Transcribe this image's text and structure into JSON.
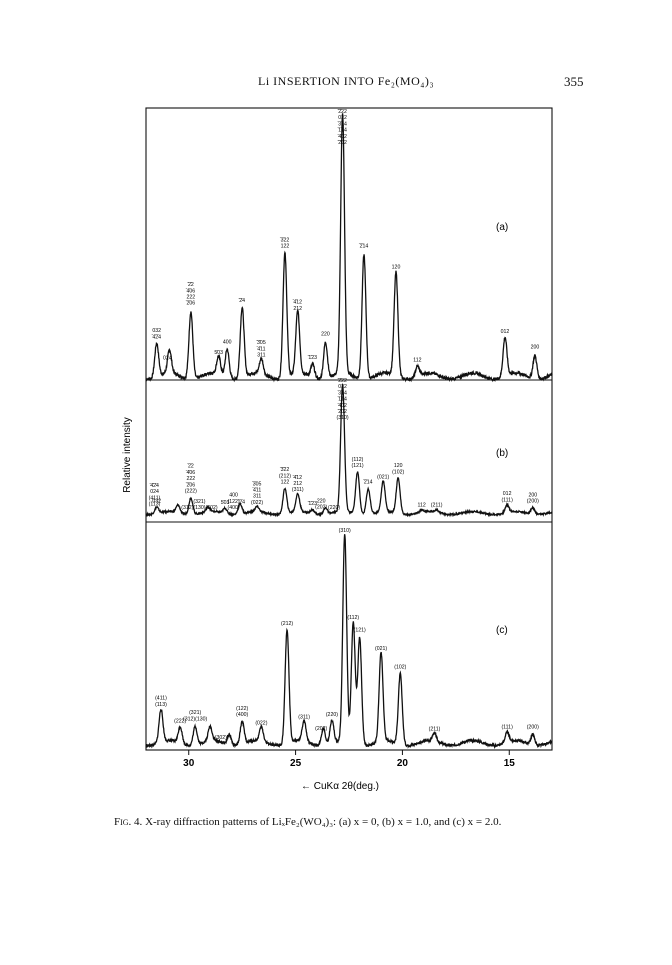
{
  "header": {
    "running_title": "Li INSERTION INTO Fe₂(MO₄)₃",
    "page_number": "355"
  },
  "figure": {
    "ylabel": "Relative intensity",
    "xlabel": "← CuKα 2θ(deg.)",
    "caption_label": "Fig. 4.",
    "caption_text": "X-ray diffraction patterns of LiₓFe₂(WO₄)₃: (a) x = 0, (b) x = 1.0, and (c) x = 2.0."
  },
  "chart_data": {
    "type": "line",
    "xlabel": "← CuKα 2θ(deg.)",
    "ylabel": "Relative intensity",
    "x_ticks": [
      30,
      25,
      20,
      15
    ],
    "xlim": [
      32.0,
      13.0
    ],
    "x_reversed": true,
    "panels": [
      {
        "name": "(a)",
        "peaks": [
          {
            "x": 31.5,
            "h": 0.13
          },
          {
            "x": 30.9,
            "h": 0.09
          },
          {
            "x": 29.9,
            "h": 0.26
          },
          {
            "x": 28.6,
            "h": 0.07
          },
          {
            "x": 28.2,
            "h": 0.11
          },
          {
            "x": 27.5,
            "h": 0.27
          },
          {
            "x": 26.6,
            "h": 0.06
          },
          {
            "x": 25.5,
            "h": 0.48
          },
          {
            "x": 24.9,
            "h": 0.24
          },
          {
            "x": 24.2,
            "h": 0.05
          },
          {
            "x": 23.6,
            "h": 0.14
          },
          {
            "x": 22.8,
            "h": 1.0
          },
          {
            "x": 21.8,
            "h": 0.48
          },
          {
            "x": 20.3,
            "h": 0.4
          },
          {
            "x": 19.3,
            "h": 0.04
          },
          {
            "x": 15.2,
            "h": 0.15
          },
          {
            "x": 13.8,
            "h": 0.09
          }
        ],
        "labels": [
          {
            "x": 31.5,
            "text": "032 ̄4̄2̄4"
          },
          {
            "x": 31.0,
            "text": "024"
          },
          {
            "x": 29.9,
            "text": "̄2̄2 ̄4̄06 222 ̄2̄06"
          },
          {
            "x": 28.6,
            "text": "5̄03"
          },
          {
            "x": 28.2,
            "text": "400"
          },
          {
            "x": 27.5,
            "text": "̄2̄4"
          },
          {
            "x": 26.6,
            "text": "̄3̄05 ̄4̄11 311"
          },
          {
            "x": 25.5,
            "text": "̄3̄22 122"
          },
          {
            "x": 24.9,
            "text": "̄4̄12 212"
          },
          {
            "x": 24.2,
            "text": "̄1̄23"
          },
          {
            "x": 23.6,
            "text": "220"
          },
          {
            "x": 22.8,
            "text": "̄2̄22 022 ̄3̄14 ̄1̄14 ̄4̄02 ̄2̄02"
          },
          {
            "x": 21.8,
            "text": "̄2̄14"
          },
          {
            "x": 20.3,
            "text": "120"
          },
          {
            "x": 19.3,
            "text": "112"
          },
          {
            "x": 15.2,
            "text": "012"
          },
          {
            "x": 13.8,
            "text": "200"
          }
        ]
      },
      {
        "name": "(b)",
        "peaks": [
          {
            "x": 31.5,
            "h": 0.05
          },
          {
            "x": 30.5,
            "h": 0.06
          },
          {
            "x": 29.9,
            "h": 0.13
          },
          {
            "x": 29.1,
            "h": 0.04
          },
          {
            "x": 28.3,
            "h": 0.04
          },
          {
            "x": 27.6,
            "h": 0.08
          },
          {
            "x": 26.8,
            "h": 0.04
          },
          {
            "x": 25.5,
            "h": 0.2
          },
          {
            "x": 24.9,
            "h": 0.14
          },
          {
            "x": 24.2,
            "h": 0.03
          },
          {
            "x": 23.6,
            "h": 0.05
          },
          {
            "x": 22.8,
            "h": 1.0
          },
          {
            "x": 22.1,
            "h": 0.33
          },
          {
            "x": 21.6,
            "h": 0.2
          },
          {
            "x": 20.9,
            "h": 0.24
          },
          {
            "x": 20.2,
            "h": 0.28
          },
          {
            "x": 19.1,
            "h": 0.02
          },
          {
            "x": 18.4,
            "h": 0.02
          },
          {
            "x": 15.1,
            "h": 0.06
          },
          {
            "x": 13.9,
            "h": 0.05
          }
        ],
        "labels": [
          {
            "x": 31.6,
            "text": "̄4̄2̄4 024 (411) (113)"
          },
          {
            "x": 31.5,
            "text": "032"
          },
          {
            "x": 29.9,
            "text": "̄2̄2 ̄4̄06 222 ̄2̄06 (222)"
          },
          {
            "x": 29.5,
            "text": "(321) (312)(130)(302)"
          },
          {
            "x": 28.3,
            "text": "5̄03"
          },
          {
            "x": 27.9,
            "text": "400 (122) (400)"
          },
          {
            "x": 27.5,
            "text": "̄2̄4"
          },
          {
            "x": 26.8,
            "text": "̄3̄05 ̄4̄11 311 (022)"
          },
          {
            "x": 25.5,
            "text": "̄3̄22 (212) 122"
          },
          {
            "x": 24.9,
            "text": "̄4̄12 212 (311)"
          },
          {
            "x": 24.2,
            "text": "̄1̄23"
          },
          {
            "x": 23.8,
            "text": "220 (202)"
          },
          {
            "x": 23.2,
            "text": "(220)"
          },
          {
            "x": 22.8,
            "text": "̄2̄22 022 ̄3̄14 ̄1̄14 ̄4̄02 ̄2̄02 (310)"
          },
          {
            "x": 22.1,
            "text": "(112) (121)"
          },
          {
            "x": 21.6,
            "text": "̄2̄14"
          },
          {
            "x": 20.9,
            "text": "(021)"
          },
          {
            "x": 20.2,
            "text": "120 (102)"
          },
          {
            "x": 19.1,
            "text": "112"
          },
          {
            "x": 18.4,
            "text": "(211)"
          },
          {
            "x": 15.1,
            "text": "012 (111)"
          },
          {
            "x": 13.9,
            "text": "200 (200)"
          }
        ]
      },
      {
        "name": "(c)",
        "peaks": [
          {
            "x": 31.3,
            "h": 0.16
          },
          {
            "x": 30.4,
            "h": 0.08
          },
          {
            "x": 29.7,
            "h": 0.09
          },
          {
            "x": 29.0,
            "h": 0.07
          },
          {
            "x": 28.1,
            "h": 0.05
          },
          {
            "x": 27.5,
            "h": 0.11
          },
          {
            "x": 26.6,
            "h": 0.07
          },
          {
            "x": 25.4,
            "h": 0.55
          },
          {
            "x": 24.6,
            "h": 0.1
          },
          {
            "x": 23.7,
            "h": 0.08
          },
          {
            "x": 23.3,
            "h": 0.11
          },
          {
            "x": 22.7,
            "h": 1.0
          },
          {
            "x": 22.3,
            "h": 0.58
          },
          {
            "x": 22.0,
            "h": 0.52
          },
          {
            "x": 21.0,
            "h": 0.43
          },
          {
            "x": 20.1,
            "h": 0.34
          },
          {
            "x": 18.5,
            "h": 0.04
          },
          {
            "x": 15.1,
            "h": 0.05
          },
          {
            "x": 13.9,
            "h": 0.05
          }
        ],
        "labels": [
          {
            "x": 31.3,
            "text": "(411) (113)"
          },
          {
            "x": 30.4,
            "text": "(222)"
          },
          {
            "x": 29.7,
            "text": "(321) (312)(130)"
          },
          {
            "x": 28.5,
            "text": "(302)"
          },
          {
            "x": 27.5,
            "text": "(122) (400)"
          },
          {
            "x": 26.6,
            "text": "(022)"
          },
          {
            "x": 25.4,
            "text": "(212)"
          },
          {
            "x": 24.6,
            "text": "(311)"
          },
          {
            "x": 23.8,
            "text": "(202)"
          },
          {
            "x": 23.3,
            "text": "(220)"
          },
          {
            "x": 22.7,
            "text": "(310)"
          },
          {
            "x": 22.3,
            "text": "(112)"
          },
          {
            "x": 22.0,
            "text": "(121)"
          },
          {
            "x": 21.0,
            "text": "(021)"
          },
          {
            "x": 20.1,
            "text": "(102)"
          },
          {
            "x": 18.5,
            "text": "(211)"
          },
          {
            "x": 15.1,
            "text": "(111)"
          },
          {
            "x": 13.9,
            "text": "(200)"
          }
        ]
      }
    ]
  }
}
